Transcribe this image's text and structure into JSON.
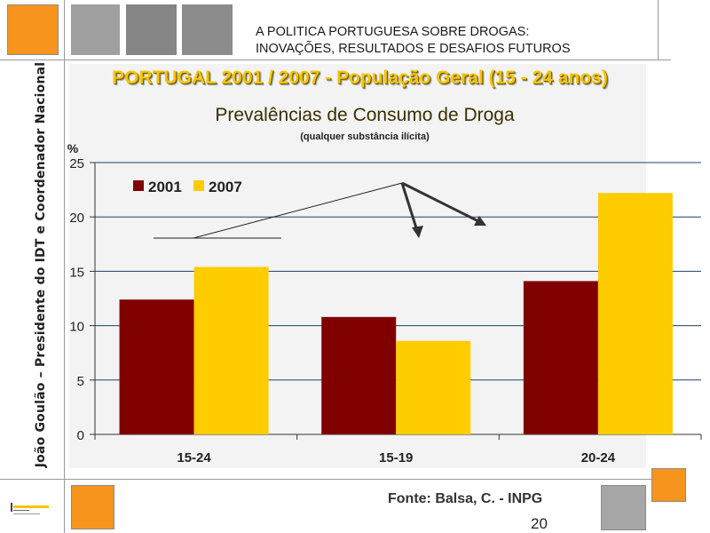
{
  "header": {
    "line1": "A POLITICA PORTUGUESA SOBRE DROGAS:",
    "line2": "INOVAÇÕES, RESULTADOS E DESAFIOS FUTUROS"
  },
  "sidebar_text": "João Goulão – Presidente do IDT e Coordenador Nacional",
  "slide_title": "PORTUGAL 2001 / 2007 - População Geral (15 - 24 anos)",
  "footer": {
    "source": "Fonte: Balsa, C. - INPG",
    "page_number": "20"
  },
  "colors": {
    "series_2001": "#800000",
    "series_2007": "#ffcc00",
    "accent_orange": "#f7941d",
    "gridline": "#1f3f6e"
  },
  "chart_data": {
    "type": "bar",
    "title": "Prevalências de Consumo de Droga",
    "subtitle": "(qualquer substância ilícita)",
    "ylabel": "%",
    "xlabel": "",
    "ylim": [
      0,
      25
    ],
    "yticks": [
      0,
      5,
      10,
      15,
      20,
      25
    ],
    "grid": true,
    "legend_position": "top-left",
    "categories": [
      "15-24",
      "15-19",
      "20-24"
    ],
    "series": [
      {
        "name": "2001",
        "values": [
          12.4,
          10.8,
          14.1
        ]
      },
      {
        "name": "2007",
        "values": [
          15.4,
          8.6,
          22.2
        ]
      }
    ]
  }
}
